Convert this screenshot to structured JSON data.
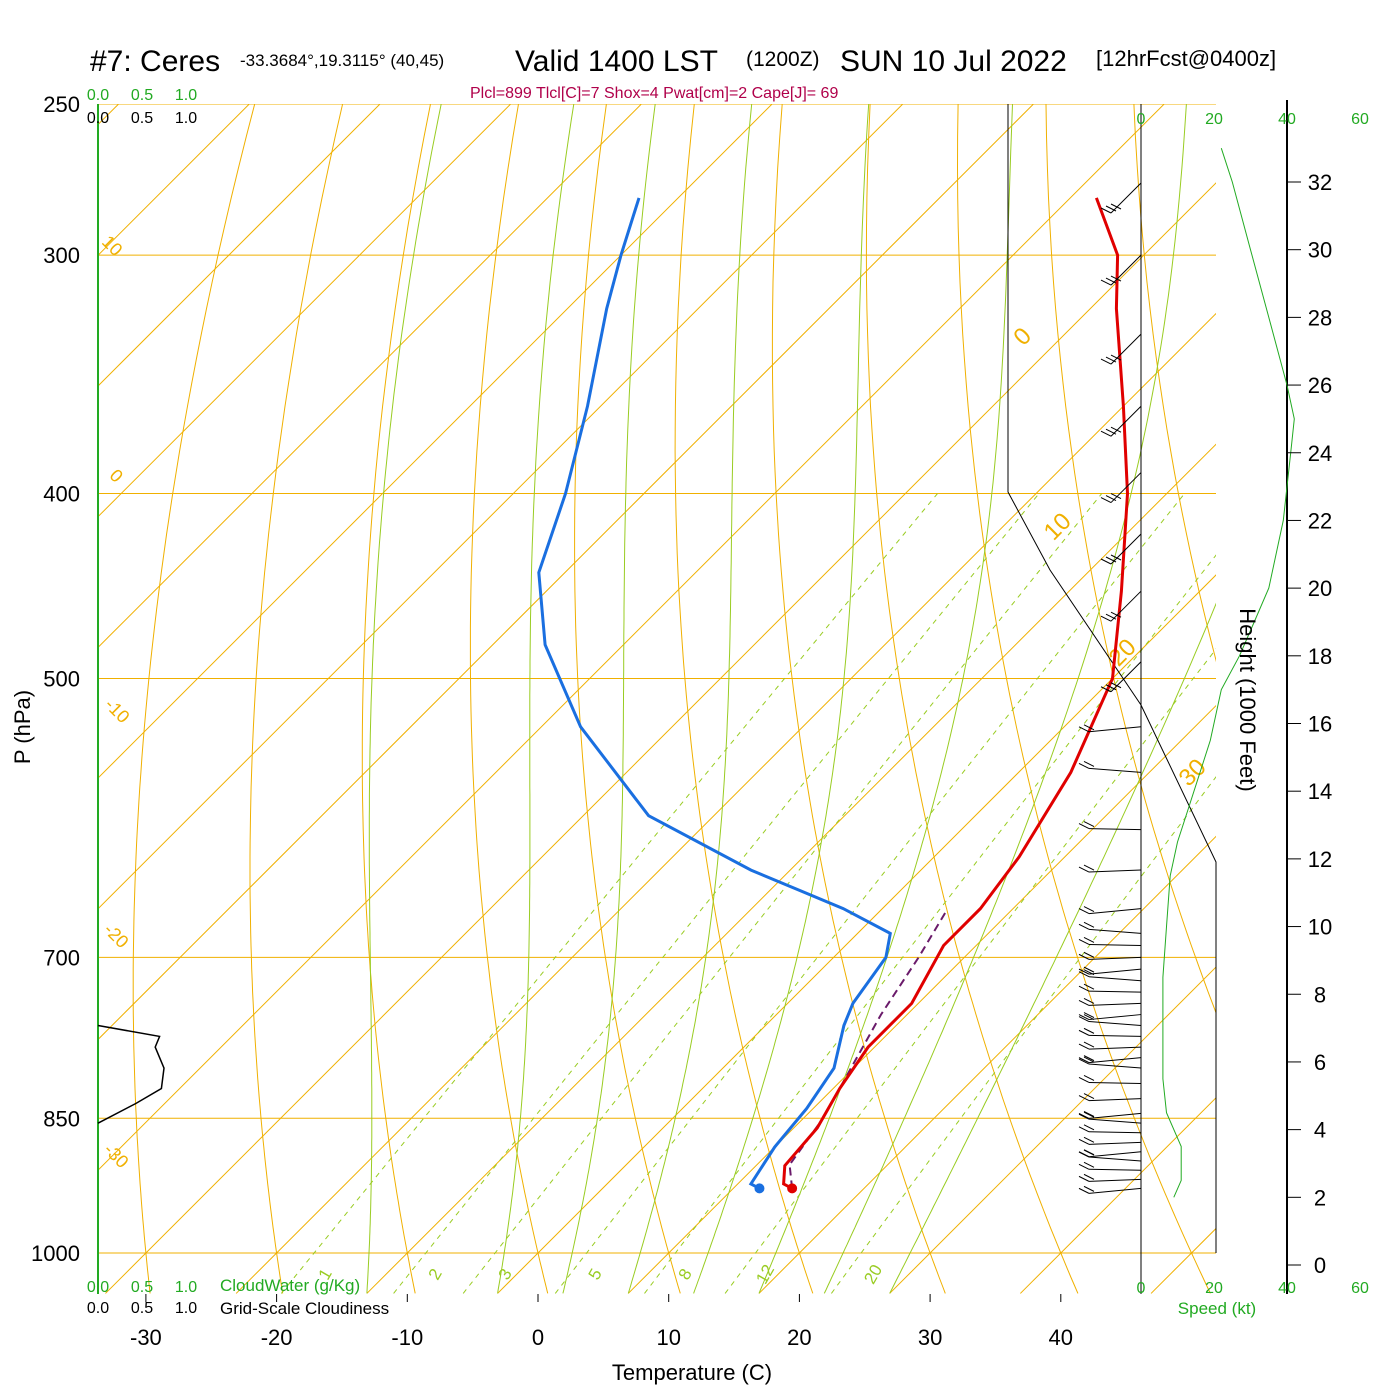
{
  "chart_data": {
    "type": "skew-t",
    "title": {
      "station": "#7: Ceres",
      "location": "-33.3684°,19.3115° (40,45)",
      "valid": "Valid 1400 LST",
      "zulu": "(1200Z)",
      "date": "SUN 10 Jul 2022",
      "forecast": "[12hrFcst@0400z]"
    },
    "indices_text": "Plcl=899 Tlcl[C]=7 Shox=4 Pwat[cm]=2 Cape[J]= 69",
    "xlabel": "Temperature (C)",
    "ylabel": "P (hPa)",
    "height_label": "Height (1000 Feet)",
    "cloudwater_label": "CloudWater (g/Kg)",
    "cloudiness_label": "Grid-Scale Cloudiness",
    "speed_label": "Speed (kt)",
    "x_ticks": [
      "-30",
      "-20",
      "-10",
      "0",
      "10",
      "20",
      "30",
      "40"
    ],
    "p_ticks": [
      "250",
      "300",
      "400",
      "500",
      "700",
      "850",
      "1000"
    ],
    "height_ticks": [
      "0",
      "2",
      "4",
      "6",
      "8",
      "10",
      "12",
      "14",
      "16",
      "18",
      "20",
      "22",
      "24",
      "26",
      "28",
      "30",
      "32"
    ],
    "speed_ticks": [
      "0",
      "20",
      "40",
      "60"
    ],
    "cloud_ticks": [
      "0.0",
      "0.5",
      "1.0"
    ],
    "isotherm_labels": [
      "10",
      "0",
      "-10",
      "-20",
      "-30",
      "0",
      "10",
      "20",
      "30"
    ],
    "mixing_ratio_labels": [
      "1",
      "2",
      "3",
      "5",
      "8",
      "12",
      "20"
    ],
    "temperature_profile": [
      {
        "p": 925,
        "t": 14.5
      },
      {
        "p": 920,
        "t": 13.5
      },
      {
        "p": 900,
        "t": 12.2
      },
      {
        "p": 860,
        "t": 11.8
      },
      {
        "p": 820,
        "t": 10.5
      },
      {
        "p": 780,
        "t": 9.5
      },
      {
        "p": 740,
        "t": 9.5
      },
      {
        "p": 690,
        "t": 7.5
      },
      {
        "p": 660,
        "t": 7.5
      },
      {
        "p": 620,
        "t": 6.5
      },
      {
        "p": 560,
        "t": 4.0
      },
      {
        "p": 500,
        "t": 0.0
      },
      {
        "p": 450,
        "t": -6.0
      },
      {
        "p": 400,
        "t": -13.0
      },
      {
        "p": 360,
        "t": -20.0
      },
      {
        "p": 320,
        "t": -28.0
      },
      {
        "p": 300,
        "t": -32.0
      },
      {
        "p": 280,
        "t": -38.0
      }
    ],
    "dewpoint_profile": [
      {
        "p": 925,
        "t": 12.0
      },
      {
        "p": 920,
        "t": 11.0
      },
      {
        "p": 880,
        "t": 10.0
      },
      {
        "p": 840,
        "t": 9.5
      },
      {
        "p": 800,
        "t": 8.5
      },
      {
        "p": 760,
        "t": 6.0
      },
      {
        "p": 740,
        "t": 5.0
      },
      {
        "p": 700,
        "t": 4.0
      },
      {
        "p": 680,
        "t": 2.5
      },
      {
        "p": 660,
        "t": -3.0
      },
      {
        "p": 630,
        "t": -13.0
      },
      {
        "p": 590,
        "t": -25.0
      },
      {
        "p": 530,
        "t": -37.0
      },
      {
        "p": 480,
        "t": -46.0
      },
      {
        "p": 440,
        "t": -52.0
      },
      {
        "p": 400,
        "t": -56.0
      },
      {
        "p": 360,
        "t": -61.0
      },
      {
        "p": 320,
        "t": -67.0
      },
      {
        "p": 300,
        "t": -70.0
      },
      {
        "p": 280,
        "t": -73.0
      }
    ],
    "parcel_path": [
      {
        "p": 925,
        "t": 14.5
      },
      {
        "p": 899,
        "t": 12.5
      },
      {
        "p": 850,
        "t": 11.5
      },
      {
        "p": 800,
        "t": 9.8
      },
      {
        "p": 750,
        "t": 8.0
      },
      {
        "p": 700,
        "t": 6.5
      },
      {
        "p": 660,
        "t": 5.0
      }
    ],
    "cloudiness_profile": [
      {
        "p": 760,
        "v": 0.0
      },
      {
        "p": 770,
        "v": 0.7
      },
      {
        "p": 780,
        "v": 0.65
      },
      {
        "p": 800,
        "v": 0.75
      },
      {
        "p": 820,
        "v": 0.72
      },
      {
        "p": 835,
        "v": 0.43
      },
      {
        "p": 855,
        "v": 0.0
      }
    ],
    "wind_speed_profile": [
      {
        "h": 2.0,
        "s": 9
      },
      {
        "h": 2.5,
        "s": 11
      },
      {
        "h": 3.5,
        "s": 11
      },
      {
        "h": 4.5,
        "s": 7
      },
      {
        "h": 5.5,
        "s": 6
      },
      {
        "h": 7.0,
        "s": 6
      },
      {
        "h": 8.5,
        "s": 6
      },
      {
        "h": 10.0,
        "s": 7
      },
      {
        "h": 11.5,
        "s": 8
      },
      {
        "h": 12.5,
        "s": 10
      },
      {
        "h": 13.5,
        "s": 13
      },
      {
        "h": 14.5,
        "s": 16
      },
      {
        "h": 15.5,
        "s": 19
      },
      {
        "h": 17.0,
        "s": 22
      },
      {
        "h": 18.0,
        "s": 27
      },
      {
        "h": 19.0,
        "s": 31
      },
      {
        "h": 20.0,
        "s": 35
      },
      {
        "h": 22.0,
        "s": 39
      },
      {
        "h": 24.0,
        "s": 41
      },
      {
        "h": 25.0,
        "s": 42
      },
      {
        "h": 26.0,
        "s": 40
      },
      {
        "h": 28.0,
        "s": 35
      },
      {
        "h": 30.0,
        "s": 30
      },
      {
        "h": 32.0,
        "s": 25
      },
      {
        "h": 33.0,
        "s": 22
      }
    ],
    "wind_barb_pressures": [
      925,
      915,
      905,
      895,
      885,
      875,
      865,
      855,
      845,
      830,
      815,
      800,
      790,
      780,
      770,
      760,
      750,
      740,
      730,
      720,
      710,
      700,
      690,
      680,
      660,
      630,
      600,
      560,
      530,
      490,
      450,
      420,
      390,
      360,
      330,
      300,
      275
    ],
    "grid": true,
    "colors": {
      "temperature": "#e00000",
      "dewpoint": "#1a6fe0",
      "parcel": "#6a1a6a",
      "isobar": "#f0b000",
      "isotherm": "#f0b000",
      "dry_adiabat": "#f0b000",
      "moist_adiabat": "#99cc22",
      "mixing_ratio": "#99cc22",
      "indices": "#b0004a",
      "green_label": "#22aa22"
    }
  }
}
